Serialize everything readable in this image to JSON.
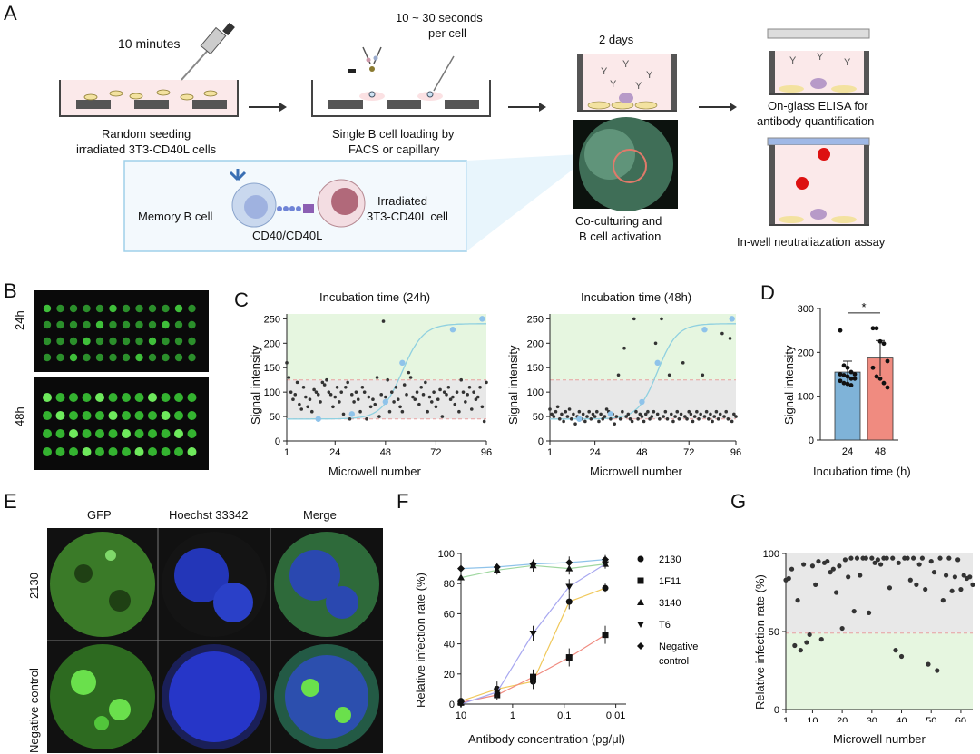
{
  "panels": {
    "A": "A",
    "B": "B",
    "C": "C",
    "D": "D",
    "E": "E",
    "F": "F",
    "G": "G"
  },
  "panelA": {
    "step1_time": "10 minutes",
    "step1_caption_l1": "Random seeding",
    "step1_caption_l2": "irradiated 3T3-CD40L cells",
    "step2_time_l1": "10 ~ 30 seconds",
    "step2_time_l2": "per cell",
    "step2_caption_l1": "Single B cell loading by",
    "step2_caption_l2": "FACS or capillary",
    "step3_time": "2 days",
    "step3_caption_l1": "Co-culturing and",
    "step3_caption_l2": "B cell activation",
    "step4_caption_l1": "On-glass ELISA for",
    "step4_caption_l2": "antibody quantification",
    "step5_caption": "In-well neutraliazation assay",
    "inset_memory": "Memory B cell",
    "inset_cd40": "CD40/CD40L",
    "inset_irr_l1": "Irradiated",
    "inset_irr_l2": "3T3-CD40L cell"
  },
  "panelB": {
    "row1": "24h",
    "row2": "48h"
  },
  "panelC": {
    "title_left": "Incubation time (24h)",
    "title_right": "Incubation time (48h)",
    "ylabel": "Signal intensity",
    "xlabel": "Microwell  number",
    "yticks": [
      "0",
      "50",
      "100",
      "150",
      "200",
      "250"
    ],
    "xticks": [
      "1",
      "24",
      "48",
      "72",
      "96"
    ]
  },
  "panelD": {
    "ylabel": "Signal intensity",
    "xlabel": "Incubation time (h)",
    "yticks": [
      "0",
      "100",
      "200",
      "300"
    ],
    "star": "*"
  },
  "panelE": {
    "col1": "GFP",
    "col2": "Hoechst 33342",
    "col3": "Merge",
    "row1": "2130",
    "row2": "Negative control"
  },
  "panelF": {
    "ylabel": "Relative infection rate (%)",
    "xlabel": "Antibody concentration (pg/μl)",
    "yticks": [
      "0",
      "20",
      "40",
      "60",
      "80",
      "100"
    ],
    "xticks": [
      "10",
      "1",
      "0.1",
      "0.01"
    ],
    "legend": [
      "2130",
      "1F11",
      "3140",
      "T6",
      "Negative",
      "control"
    ]
  },
  "panelG": {
    "ylabel": "Relative infection rate (%)",
    "xlabel": "Microwell  number",
    "yticks": [
      "0",
      "50",
      "100"
    ],
    "xticks": [
      "1",
      "10",
      "20",
      "30",
      "40",
      "50",
      "60"
    ]
  },
  "colors": {
    "green_zone": "#e6f6e0",
    "gray_zone": "#e8e8e8",
    "fit": "#8fd0e0",
    "bar_blue": "#7fb3d8",
    "bar_red": "#f08b80"
  },
  "chart_data": [
    {
      "type": "scatter",
      "title": "Incubation time (24h)",
      "xlabel": "Microwell  number",
      "ylabel": "Signal intensity",
      "xlim": [
        1,
        96
      ],
      "ylim": [
        0,
        260
      ],
      "standards": {
        "x": [
          16,
          32,
          48,
          56,
          80,
          94
        ],
        "y": [
          45,
          55,
          80,
          160,
          228,
          250
        ]
      },
      "points_y": [
        160,
        130,
        100,
        85,
        95,
        120,
        75,
        65,
        110,
        90,
        70,
        85,
        60,
        105,
        100,
        95,
        80,
        120,
        115,
        125,
        100,
        95,
        70,
        90,
        110,
        80,
        100,
        55,
        110,
        120,
        45,
        95,
        80,
        100,
        85,
        60,
        110,
        100,
        45,
        90,
        70,
        85,
        75,
        130,
        50,
        95,
        245,
        90,
        125,
        60,
        100,
        80,
        110,
        85,
        70,
        60,
        115,
        95,
        140,
        130,
        90,
        85,
        100,
        75,
        110,
        95,
        120,
        60,
        90,
        80,
        100,
        70,
        85,
        105,
        50,
        100,
        95,
        110,
        85,
        90,
        75,
        100,
        60,
        125,
        100,
        80,
        95,
        110,
        65,
        100,
        85,
        90,
        110,
        70,
        40,
        120
      ]
    },
    {
      "type": "scatter",
      "title": "Incubation time (48h)",
      "xlabel": "Microwell  number",
      "ylabel": "Signal intensity",
      "xlim": [
        1,
        96
      ],
      "ylim": [
        0,
        260
      ],
      "standards": {
        "x": [
          16,
          32,
          48,
          56,
          80,
          94
        ],
        "y": [
          45,
          55,
          80,
          160,
          228,
          250
        ]
      },
      "points_y": [
        65,
        55,
        50,
        60,
        70,
        45,
        55,
        40,
        60,
        50,
        65,
        45,
        55,
        35,
        50,
        60,
        45,
        55,
        40,
        50,
        60,
        45,
        55,
        50,
        60,
        40,
        55,
        45,
        50,
        65,
        60,
        45,
        55,
        35,
        50,
        135,
        45,
        60,
        190,
        50,
        55,
        45,
        40,
        250,
        60,
        45,
        55,
        50,
        40,
        55,
        60,
        45,
        50,
        60,
        200,
        55,
        45,
        250,
        50,
        60,
        45,
        135,
        55,
        40,
        50,
        60,
        45,
        55,
        160,
        50,
        45,
        60,
        55,
        40,
        50,
        60,
        45,
        55,
        135,
        50,
        60,
        45,
        55,
        40,
        50,
        60,
        45,
        55,
        220,
        50,
        60,
        45,
        210,
        40,
        55,
        50
      ]
    },
    {
      "type": "bar",
      "categories": [
        "24",
        "48"
      ],
      "values": [
        155,
        187
      ],
      "errors": [
        25,
        40
      ],
      "xlabel": "Incubation time (h)",
      "ylabel": "Signal intensity",
      "ylim": [
        0,
        300
      ],
      "points": {
        "24": [
          250,
          170,
          165,
          155,
          150,
          150,
          148,
          145,
          140,
          140,
          135,
          130,
          128,
          125
        ],
        "48": [
          255,
          255,
          225,
          220,
          180,
          165,
          145,
          140,
          130,
          120
        ]
      }
    },
    {
      "type": "line",
      "xlabel": "Antibody concentration (pg/μl)",
      "ylabel": "Relative infection rate (%)",
      "x_scale": "log-reversed",
      "x": [
        10,
        2,
        0.4,
        0.08,
        0.016
      ],
      "ylim": [
        0,
        100
      ],
      "series": [
        {
          "name": "2130",
          "values": [
            2,
            10,
            15,
            68,
            77
          ],
          "errors": [
            2,
            5,
            5,
            5,
            3
          ]
        },
        {
          "name": "1F11",
          "values": [
            1,
            6,
            18,
            31,
            46
          ],
          "errors": [
            1,
            3,
            5,
            6,
            6
          ]
        },
        {
          "name": "3140",
          "values": [
            84,
            89,
            92,
            90,
            93
          ],
          "errors": [
            3,
            3,
            4,
            4,
            3
          ]
        },
        {
          "name": "T6",
          "values": [
            0,
            8,
            47,
            78,
            93
          ],
          "errors": [
            2,
            4,
            5,
            5,
            3
          ]
        },
        {
          "name": "Negative control",
          "values": [
            90,
            91,
            93,
            94,
            96
          ],
          "errors": [
            2,
            3,
            3,
            4,
            3
          ]
        }
      ]
    },
    {
      "type": "scatter",
      "xlabel": "Microwell  number",
      "ylabel": "Relative infection rate (%)",
      "xlim": [
        1,
        64
      ],
      "ylim": [
        0,
        100
      ],
      "points_y": [
        83,
        84,
        90,
        41,
        70,
        38,
        93,
        43,
        48,
        92,
        80,
        95,
        45,
        94,
        95,
        88,
        90,
        75,
        92,
        52,
        96,
        85,
        97,
        63,
        97,
        86,
        97,
        97,
        62,
        97,
        94,
        96,
        93,
        97,
        97,
        78,
        97,
        38,
        94,
        34,
        97,
        97,
        83,
        97,
        80,
        93,
        97,
        77,
        29,
        95,
        88,
        25,
        97,
        70,
        86,
        97,
        76,
        85,
        96,
        77,
        86,
        84,
        85,
        80
      ]
    }
  ]
}
